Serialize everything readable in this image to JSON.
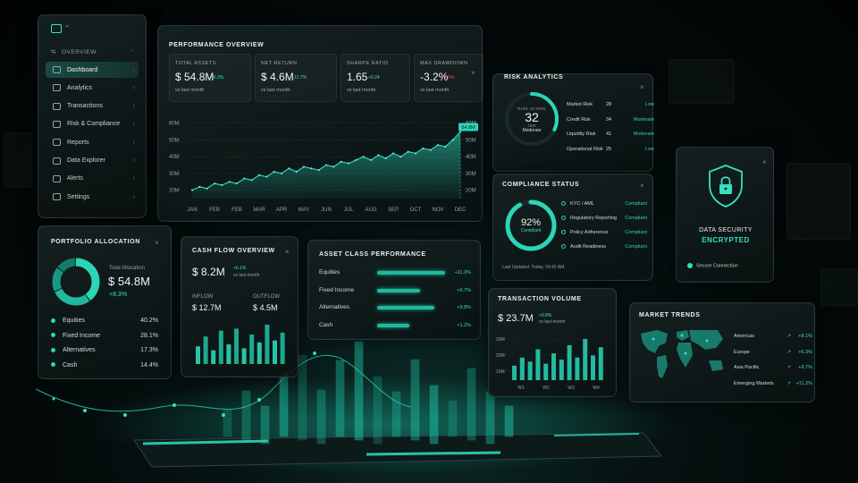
{
  "sidebar": {
    "overview": "OVERVIEW",
    "items": [
      {
        "label": "Dashboard",
        "icon": "dashboard-icon",
        "active": true
      },
      {
        "label": "Analytics",
        "icon": "analytics-icon"
      },
      {
        "label": "Transactions",
        "icon": "transactions-icon"
      },
      {
        "label": "Risk & Compliance",
        "icon": "shield-icon"
      },
      {
        "label": "Reports",
        "icon": "reports-icon"
      },
      {
        "label": "Data Explorer",
        "icon": "data-explorer-icon"
      },
      {
        "label": "Alerts",
        "icon": "bell-icon"
      },
      {
        "label": "Settings",
        "icon": "gear-icon"
      }
    ]
  },
  "performance": {
    "title": "PERFORMANCE OVERVIEW",
    "kpis": [
      {
        "label": "TOTAL ASSETS",
        "value": "$ 54.8M",
        "delta": "+6.3%",
        "sub": "vs last month",
        "delta_color": "#35e0c2"
      },
      {
        "label": "NET RETURN",
        "value": "$ 4.6M",
        "delta": "+12.7%",
        "sub": "vs last month",
        "delta_color": "#35e0c2"
      },
      {
        "label": "SHARPE RATIO",
        "value": "1.65",
        "delta": "+0.24",
        "sub": "vs last month",
        "delta_color": "#35e0c2"
      },
      {
        "label": "MAX DRAWDOWN",
        "value": "-3.2%",
        "delta": "+1.6%",
        "sub": "vs last month",
        "delta_color": "#e0524f"
      }
    ],
    "callout": "54.8M"
  },
  "chart_data": {
    "type": "area",
    "categories": [
      "JAN",
      "FEB",
      "FEB",
      "MAR",
      "APR",
      "MAY",
      "JUN",
      "JUL",
      "AUG",
      "SEP",
      "OCT",
      "NOV",
      "DEC"
    ],
    "x": [
      0,
      1,
      2,
      3,
      4,
      5,
      6,
      7,
      8,
      9,
      10,
      11,
      12,
      13,
      14,
      15,
      16,
      17,
      18,
      19,
      20,
      21,
      22,
      23,
      24,
      25,
      26,
      27,
      28,
      29,
      30,
      31,
      32,
      33,
      34,
      35,
      36
    ],
    "values": [
      20,
      22,
      21,
      24,
      23,
      25,
      24,
      27,
      26,
      29,
      28,
      31,
      30,
      33,
      31,
      34,
      33,
      32,
      35,
      34,
      37,
      36,
      38,
      40,
      38,
      41,
      39,
      42,
      40,
      43,
      42,
      45,
      44,
      47,
      46,
      50,
      54.8
    ],
    "yticks": [
      "60M",
      "50M",
      "40M",
      "30M",
      "20M"
    ],
    "ylim": [
      15,
      62
    ],
    "grid": true,
    "color": "#2ad6b8"
  },
  "risk": {
    "title": "RISK ANALYTICS",
    "score_label": "RISK SCORE",
    "score": "32",
    "score_max": "/100",
    "score_level": "Moderate",
    "score_fraction": 0.32,
    "rows": [
      {
        "name": "Market Risk",
        "value": "28",
        "level": "Low"
      },
      {
        "name": "Credit Risk",
        "value": "34",
        "level": "Moderate"
      },
      {
        "name": "Liquidity Risk",
        "value": "41",
        "level": "Moderate"
      },
      {
        "name": "Operational Risk",
        "value": "25",
        "level": "Low"
      }
    ]
  },
  "compliance": {
    "title": "COMPLIANCE STATUS",
    "percent": "92%",
    "label": "Compliant",
    "fraction": 0.92,
    "rows": [
      {
        "name": "KYC / AML",
        "status": "Compliant"
      },
      {
        "name": "Regulatory Reporting",
        "status": "Compliant"
      },
      {
        "name": "Policy Adherence",
        "status": "Compliant"
      },
      {
        "name": "Audit Readiness",
        "status": "Compliant"
      }
    ],
    "updated": "Last Updated: Today, 09:42 AM"
  },
  "security": {
    "title": "DATA SECURITY",
    "status": "ENCRYPTED",
    "connection": "Secure Connection"
  },
  "portfolio": {
    "title": "PORTFOLIO ALLOCATION",
    "total_label": "Total Allocation",
    "total": "$ 54.8M",
    "delta": "+8.3%",
    "rows": [
      {
        "name": "Equities",
        "pct": "40.2%"
      },
      {
        "name": "Fixed Income",
        "pct": "28.1%"
      },
      {
        "name": "Alternatives",
        "pct": "17.3%"
      },
      {
        "name": "Cash",
        "pct": "14.4%"
      }
    ]
  },
  "cashflow": {
    "title": "CASH FLOW OVERVIEW",
    "value": "$ 8.2M",
    "delta": "+6.1%",
    "sub": "vs last month",
    "inflow_label": "INFLOW",
    "inflow": "$ 12.7M",
    "outflow_label": "OUTFLOW",
    "outflow": "$ 4.5M",
    "bars": [
      0.45,
      0.7,
      0.35,
      0.85,
      0.5,
      0.9,
      0.4,
      0.75,
      0.55,
      1.0,
      0.6,
      0.8
    ]
  },
  "asset_class": {
    "title": "ASSET CLASS PERFORMANCE",
    "rows": [
      {
        "name": "Equities",
        "delta": "+11.3%",
        "fraction": 0.95
      },
      {
        "name": "Fixed Income",
        "delta": "+6.7%",
        "fraction": 0.6
      },
      {
        "name": "Alternatives",
        "delta": "+9.8%",
        "fraction": 0.8
      },
      {
        "name": "Cash",
        "delta": "+1.2%",
        "fraction": 0.45
      }
    ]
  },
  "transactions": {
    "title": "TRANSACTION VOLUME",
    "value": "$ 23.7M",
    "delta": "+9.8%",
    "sub": "vs last month",
    "yticks": [
      "30M",
      "20M",
      "10M"
    ],
    "weeks": [
      "W1",
      "W2",
      "W3",
      "W4"
    ],
    "bars": [
      0.35,
      0.55,
      0.45,
      0.75,
      0.4,
      0.65,
      0.5,
      0.85,
      0.55,
      1.0,
      0.6,
      0.8
    ]
  },
  "market": {
    "title": "MARKET TRENDS",
    "rows": [
      {
        "name": "Americas",
        "delta": "+8.1%"
      },
      {
        "name": "Europe",
        "delta": "+6.3%"
      },
      {
        "name": "Asia Pacific",
        "delta": "+9.7%"
      },
      {
        "name": "Emerging Markets",
        "delta": "+11.2%"
      }
    ]
  }
}
